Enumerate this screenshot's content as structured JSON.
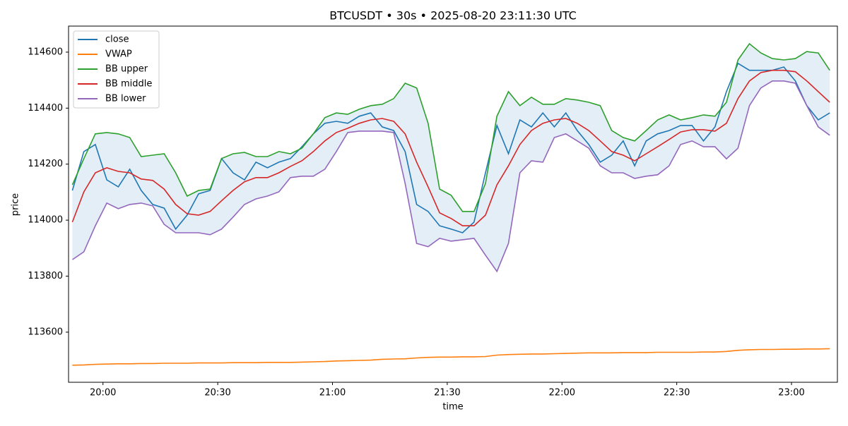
{
  "chart_data": {
    "type": "line",
    "title": "BTCUSDT • 30s • 2025-08-20 23:11:30 UTC",
    "x_label": "time",
    "y_label": "price",
    "x": [
      "19:52",
      "19:55",
      "19:58",
      "20:01",
      "20:04",
      "20:07",
      "20:10",
      "20:13",
      "20:16",
      "20:19",
      "20:22",
      "20:25",
      "20:28",
      "20:31",
      "20:34",
      "20:37",
      "20:40",
      "20:43",
      "20:46",
      "20:49",
      "20:52",
      "20:55",
      "20:58",
      "21:01",
      "21:04",
      "21:07",
      "21:10",
      "21:13",
      "21:16",
      "21:19",
      "21:22",
      "21:25",
      "21:28",
      "21:31",
      "21:34",
      "21:37",
      "21:40",
      "21:43",
      "21:46",
      "21:49",
      "21:52",
      "21:55",
      "21:58",
      "22:01",
      "22:04",
      "22:07",
      "22:10",
      "22:13",
      "22:16",
      "22:19",
      "22:22",
      "22:25",
      "22:28",
      "22:31",
      "22:34",
      "22:37",
      "22:40",
      "22:43",
      "22:46",
      "22:49",
      "22:52",
      "22:55",
      "22:58",
      "23:01",
      "23:04",
      "23:07",
      "23:10"
    ],
    "xlim": [
      "19:51",
      "23:12"
    ],
    "xticks": [
      "20:00",
      "20:30",
      "21:00",
      "21:30",
      "22:00",
      "22:30",
      "23:00"
    ],
    "ylim": [
      113421,
      114693
    ],
    "yticks": [
      113600,
      113800,
      114000,
      114200,
      114400,
      114600
    ],
    "legend": "upper left",
    "band": [
      2,
      4
    ],
    "band_color": "#1f77b4",
    "series": [
      {
        "name": "close",
        "color": "#1f77b4",
        "values": [
          114106,
          114245,
          114270,
          114144,
          114119,
          114182,
          114106,
          114056,
          114043,
          113968,
          114018,
          114094,
          114106,
          114220,
          114169,
          114144,
          114207,
          114187,
          114207,
          114220,
          114262,
          114308,
          114346,
          114353,
          114346,
          114371,
          114383,
          114333,
          114320,
          114245,
          114056,
          114031,
          113980,
          113968,
          113955,
          113993,
          114169,
          114338,
          114237,
          114358,
          114333,
          114383,
          114333,
          114383,
          114320,
          114270,
          114207,
          114232,
          114283,
          114194,
          114283,
          114308,
          114320,
          114338,
          114338,
          114283,
          114333,
          114459,
          114560,
          114535,
          114535,
          114535,
          114547,
          114497,
          114409,
          114358,
          114383
        ]
      },
      {
        "name": "VWAP",
        "color": "#ff7f0e",
        "values": [
          113482,
          113483,
          113485,
          113486,
          113487,
          113487,
          113488,
          113488,
          113489,
          113489,
          113489,
          113490,
          113490,
          113490,
          113491,
          113491,
          113491,
          113492,
          113492,
          113492,
          113493,
          113494,
          113495,
          113497,
          113498,
          113499,
          113500,
          113503,
          113504,
          113505,
          113508,
          113510,
          113511,
          113511,
          113512,
          113512,
          113513,
          113518,
          113520,
          113521,
          113522,
          113522,
          113523,
          113524,
          113525,
          113526,
          113526,
          113526,
          113527,
          113527,
          113527,
          113528,
          113528,
          113528,
          113528,
          113529,
          113529,
          113531,
          113535,
          113537,
          113538,
          113538,
          113539,
          113539,
          113540,
          113540,
          113541
        ]
      },
      {
        "name": "BB upper",
        "color": "#2ca02c",
        "values": [
          114126,
          114220,
          114308,
          114313,
          114308,
          114295,
          114227,
          114232,
          114237,
          114169,
          114086,
          114106,
          114111,
          114220,
          114237,
          114242,
          114227,
          114227,
          114245,
          114237,
          114257,
          114308,
          114366,
          114383,
          114378,
          114396,
          114409,
          114414,
          114434,
          114489,
          114472,
          114346,
          114111,
          114089,
          114031,
          114031,
          114131,
          114371,
          114459,
          114409,
          114439,
          114414,
          114414,
          114434,
          114429,
          114421,
          114409,
          114320,
          114295,
          114283,
          114320,
          114358,
          114376,
          114358,
          114366,
          114376,
          114371,
          114421,
          114572,
          114630,
          114597,
          114577,
          114572,
          114577,
          114602,
          114597,
          114535
        ]
      },
      {
        "name": "BB middle",
        "color": "#d62728",
        "values": [
          113993,
          114101,
          114169,
          114187,
          114174,
          114169,
          114147,
          114142,
          114111,
          114056,
          114023,
          114018,
          114031,
          114069,
          114106,
          114137,
          114152,
          114152,
          114169,
          114192,
          114212,
          114245,
          114283,
          114313,
          114328,
          114346,
          114358,
          114363,
          114353,
          114308,
          114207,
          114119,
          114026,
          114006,
          113980,
          113980,
          114018,
          114126,
          114194,
          114270,
          114320,
          114346,
          114358,
          114363,
          114346,
          114320,
          114283,
          114245,
          114232,
          114212,
          114237,
          114262,
          114288,
          114315,
          114323,
          114323,
          114318,
          114346,
          114434,
          114497,
          114527,
          114535,
          114535,
          114530,
          114497,
          114459,
          114421
        ]
      },
      {
        "name": "BB lower",
        "color": "#9467bd",
        "values": [
          113859,
          113887,
          113980,
          114061,
          114041,
          114056,
          114061,
          114051,
          113985,
          113955,
          113955,
          113955,
          113948,
          113968,
          114011,
          114056,
          114076,
          114086,
          114101,
          114152,
          114157,
          114157,
          114182,
          114245,
          114313,
          114318,
          114318,
          114318,
          114313,
          114131,
          113917,
          113905,
          113935,
          113925,
          113930,
          113935,
          113875,
          113817,
          113917,
          114169,
          114212,
          114207,
          114295,
          114308,
          114283,
          114257,
          114194,
          114169,
          114169,
          114149,
          114157,
          114162,
          114194,
          114270,
          114283,
          114262,
          114262,
          114219,
          114257,
          114409,
          114472,
          114497,
          114497,
          114489,
          114409,
          114333,
          114303
        ]
      }
    ]
  }
}
